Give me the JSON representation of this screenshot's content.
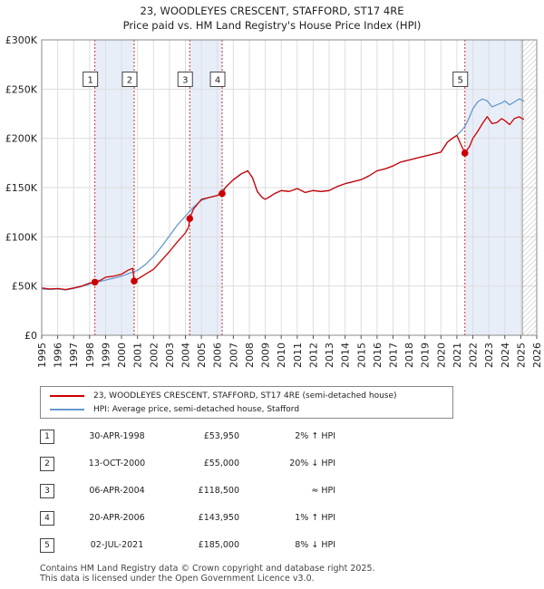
{
  "chart_data": {
    "type": "line",
    "title": "23, WOODLEYES CRESCENT, STAFFORD, ST17 4RE",
    "subtitle": "Price paid vs. HM Land Registry's House Price Index (HPI)",
    "xlim": [
      1995,
      2026
    ],
    "ylim": [
      0,
      300000
    ],
    "x_ticks": [
      "1995",
      "1996",
      "1997",
      "1998",
      "1999",
      "2000",
      "2001",
      "2002",
      "2003",
      "2004",
      "2005",
      "2006",
      "2007",
      "2008",
      "2009",
      "2010",
      "2011",
      "2012",
      "2013",
      "2014",
      "2015",
      "2016",
      "2017",
      "2018",
      "2019",
      "2020",
      "2021",
      "2022",
      "2023",
      "2024",
      "2025",
      "2026"
    ],
    "y_ticks": [
      {
        "value": 0,
        "label": "£0"
      },
      {
        "value": 50000,
        "label": "£50K"
      },
      {
        "value": 100000,
        "label": "£100K"
      },
      {
        "value": 150000,
        "label": "£150K"
      },
      {
        "value": 200000,
        "label": "£200K"
      },
      {
        "value": 250000,
        "label": "£250K"
      },
      {
        "value": 300000,
        "label": "£300K"
      }
    ],
    "grid": true,
    "shaded_periods": [
      [
        1998.33,
        2000.79
      ],
      [
        2004.27,
        2006.3
      ],
      [
        2021.5,
        2025.1
      ]
    ],
    "hatched_from": 2025.1,
    "series": [
      {
        "name": "23, WOODLEYES CRESCENT, STAFFORD, ST17 4RE (semi-detached house)",
        "color": "#cc0000",
        "x": [
          1995.0,
          1995.5,
          1996.0,
          1996.5,
          1997.0,
          1997.5,
          1998.0,
          1998.33,
          1998.7,
          1999.0,
          1999.5,
          2000.0,
          2000.4,
          2000.7,
          2000.79,
          2001.0,
          2001.5,
          2002.0,
          2002.5,
          2003.0,
          2003.5,
          2004.0,
          2004.2,
          2004.27,
          2004.5,
          2005.0,
          2005.5,
          2006.0,
          2006.3,
          2006.5,
          2007.0,
          2007.5,
          2007.9,
          2008.2,
          2008.5,
          2008.8,
          2009.0,
          2009.3,
          2009.6,
          2010.0,
          2010.5,
          2011.0,
          2011.5,
          2012.0,
          2012.5,
          2013.0,
          2013.5,
          2014.0,
          2014.5,
          2015.0,
          2015.5,
          2016.0,
          2016.5,
          2017.0,
          2017.5,
          2018.0,
          2018.5,
          2019.0,
          2019.5,
          2020.0,
          2020.4,
          2020.7,
          2021.0,
          2021.3,
          2021.45,
          2021.5,
          2021.8,
          2022.0,
          2022.3,
          2022.6,
          2022.9,
          2023.2,
          2023.5,
          2023.8,
          2024.0,
          2024.3,
          2024.6,
          2024.9,
          2025.2
        ],
        "values": [
          48000,
          47000,
          47500,
          46500,
          48000,
          50000,
          53000,
          53950,
          56000,
          59000,
          60000,
          62000,
          66000,
          68000,
          55000,
          57000,
          62000,
          67000,
          76000,
          85000,
          95000,
          104000,
          110000,
          118500,
          128000,
          138000,
          140000,
          142000,
          143950,
          150000,
          158000,
          164000,
          167000,
          160000,
          146000,
          140000,
          138000,
          141000,
          144000,
          147000,
          146000,
          149000,
          145000,
          147000,
          146000,
          147000,
          151000,
          154000,
          156000,
          158000,
          162000,
          167000,
          169000,
          172000,
          176000,
          178000,
          180000,
          182000,
          184000,
          186000,
          196000,
          200000,
          203000,
          192000,
          187000,
          185000,
          192000,
          200000,
          207000,
          215000,
          222000,
          215000,
          216000,
          220000,
          218000,
          214000,
          220000,
          222000,
          219000
        ]
      },
      {
        "name": "HPI: Average price, semi-detached house, Stafford",
        "color": "#6699cc",
        "x": [
          1995.0,
          1995.5,
          1996.0,
          1996.5,
          1997.0,
          1997.5,
          1998.0,
          1998.5,
          1999.0,
          1999.5,
          2000.0,
          2000.5,
          2001.0,
          2001.5,
          2002.0,
          2002.5,
          2003.0,
          2003.5,
          2004.0,
          2004.5,
          2005.0,
          2005.5,
          2006.0,
          2006.5,
          2007.0,
          2007.5,
          2007.9,
          2008.2,
          2008.5,
          2008.8,
          2009.0,
          2009.3,
          2009.6,
          2010.0,
          2010.5,
          2011.0,
          2011.5,
          2012.0,
          2012.5,
          2013.0,
          2013.5,
          2014.0,
          2014.5,
          2015.0,
          2015.5,
          2016.0,
          2016.5,
          2017.0,
          2017.5,
          2018.0,
          2018.5,
          2019.0,
          2019.5,
          2020.0,
          2020.4,
          2020.7,
          2021.0,
          2021.3,
          2021.5,
          2021.8,
          2022.0,
          2022.3,
          2022.6,
          2022.9,
          2023.2,
          2023.5,
          2023.8,
          2024.0,
          2024.3,
          2024.6,
          2024.9,
          2025.2
        ],
        "values": [
          47000,
          46500,
          47000,
          46000,
          47500,
          49500,
          52000,
          54000,
          56000,
          58000,
          60000,
          63000,
          66000,
          72000,
          80000,
          90000,
          101000,
          112000,
          121000,
          130000,
          137000,
          140000,
          142000,
          150000,
          158000,
          164000,
          167000,
          160000,
          146000,
          140000,
          138000,
          141000,
          144000,
          147000,
          146000,
          149000,
          145000,
          147000,
          146000,
          147000,
          151000,
          154000,
          156000,
          158000,
          162000,
          167000,
          169000,
          172000,
          176000,
          178000,
          180000,
          182000,
          184000,
          186000,
          196000,
          200000,
          203000,
          208000,
          212000,
          222000,
          230000,
          237000,
          240000,
          238000,
          232000,
          234000,
          236000,
          238000,
          234000,
          237000,
          240000,
          238000
        ]
      }
    ],
    "markers": [
      {
        "label": "1",
        "x": 1998.33,
        "value": 53950
      },
      {
        "label": "2",
        "x": 2000.79,
        "value": 55000
      },
      {
        "label": "3",
        "x": 2004.27,
        "value": 118500
      },
      {
        "label": "4",
        "x": 2006.3,
        "value": 143950
      },
      {
        "label": "5",
        "x": 2021.5,
        "value": 185000
      }
    ],
    "marker_label_value": 260000
  },
  "sales": [
    {
      "num": "1",
      "date": "30-APR-1998",
      "price": "£53,950",
      "hpi": "2% ↑ HPI"
    },
    {
      "num": "2",
      "date": "13-OCT-2000",
      "price": "£55,000",
      "hpi": "20% ↓ HPI"
    },
    {
      "num": "3",
      "date": "06-APR-2004",
      "price": "£118,500",
      "hpi": "≈ HPI"
    },
    {
      "num": "4",
      "date": "20-APR-2006",
      "price": "£143,950",
      "hpi": "1% ↑ HPI"
    },
    {
      "num": "5",
      "date": "02-JUL-2021",
      "price": "£185,000",
      "hpi": "8% ↓ HPI"
    }
  ],
  "footer": {
    "line1": "Contains HM Land Registry data © Crown copyright and database right 2025.",
    "line2": "This data is licensed under the Open Government Licence v3.0."
  },
  "colors": {
    "property": "#cc0000",
    "hpi": "#6699cc",
    "shade": "#e8eef8",
    "grid": "#dddddd",
    "marker_line": "#cc3333"
  }
}
